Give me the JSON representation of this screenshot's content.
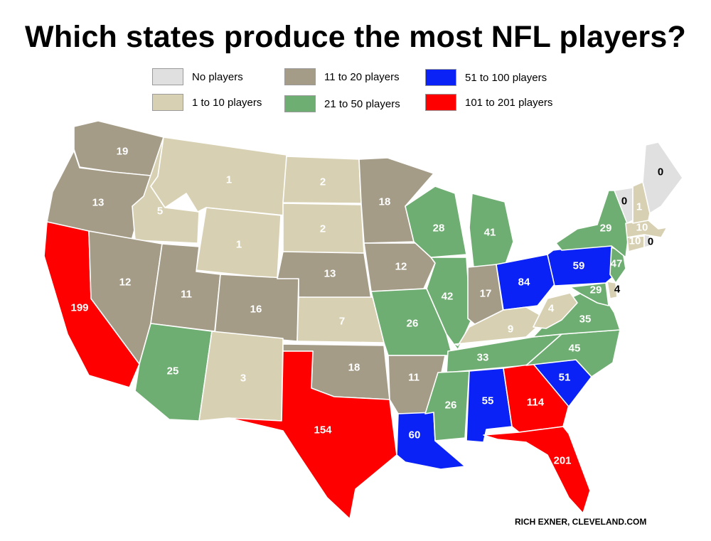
{
  "title": "Which states produce the most NFL players?",
  "credit": "RICH EXNER, CLEVELAND.COM",
  "colors": {
    "none": "#e0e0e0",
    "c1_10": "#d8d0b2",
    "c11_20": "#a59c88",
    "c21_50": "#6fae72",
    "c51_100": "#0a22f5",
    "c101_201": "#ff0000"
  },
  "legend": [
    {
      "label": "No players",
      "color_key": "none"
    },
    {
      "label": "1 to 10 players",
      "color_key": "c1_10"
    },
    {
      "label": "11 to 20 players",
      "color_key": "c11_20"
    },
    {
      "label": "21 to 50 players",
      "color_key": "c21_50"
    },
    {
      "label": "51 to 100 players",
      "color_key": "c51_100"
    },
    {
      "label": "101 to 201 players",
      "color_key": "c101_201"
    }
  ],
  "states": [
    {
      "id": "WA",
      "value": 19
    },
    {
      "id": "OR",
      "value": 13
    },
    {
      "id": "CA",
      "value": 199
    },
    {
      "id": "ID",
      "value": 5
    },
    {
      "id": "NV",
      "value": 12
    },
    {
      "id": "MT",
      "value": 1
    },
    {
      "id": "WY",
      "value": 1
    },
    {
      "id": "UT",
      "value": 11
    },
    {
      "id": "AZ",
      "value": 25
    },
    {
      "id": "CO",
      "value": 16
    },
    {
      "id": "NM",
      "value": 3
    },
    {
      "id": "ND",
      "value": 2
    },
    {
      "id": "SD",
      "value": 2
    },
    {
      "id": "NE",
      "value": 13
    },
    {
      "id": "KS",
      "value": 7
    },
    {
      "id": "OK",
      "value": 18
    },
    {
      "id": "TX",
      "value": 154
    },
    {
      "id": "MN",
      "value": 18
    },
    {
      "id": "IA",
      "value": 12
    },
    {
      "id": "MO",
      "value": 26
    },
    {
      "id": "AR",
      "value": 11
    },
    {
      "id": "LA",
      "value": 60
    },
    {
      "id": "WI",
      "value": 28
    },
    {
      "id": "IL",
      "value": 42
    },
    {
      "id": "MI",
      "value": 41
    },
    {
      "id": "IN",
      "value": 17
    },
    {
      "id": "OH",
      "value": 84
    },
    {
      "id": "KY",
      "value": 9
    },
    {
      "id": "TN",
      "value": 33
    },
    {
      "id": "MS",
      "value": 26
    },
    {
      "id": "AL",
      "value": 55
    },
    {
      "id": "GA",
      "value": 114
    },
    {
      "id": "FL",
      "value": 201
    },
    {
      "id": "SC",
      "value": 51
    },
    {
      "id": "NC",
      "value": 45
    },
    {
      "id": "VA",
      "value": 35
    },
    {
      "id": "WV",
      "value": 4
    },
    {
      "id": "MD",
      "value": 29
    },
    {
      "id": "DE",
      "value": 4
    },
    {
      "id": "PA",
      "value": 59
    },
    {
      "id": "NJ",
      "value": 47
    },
    {
      "id": "NY",
      "value": 29
    },
    {
      "id": "CT",
      "value": 10
    },
    {
      "id": "RI",
      "value": 0
    },
    {
      "id": "MA",
      "value": 10
    },
    {
      "id": "VT",
      "value": 0
    },
    {
      "id": "NH",
      "value": 1
    },
    {
      "id": "ME",
      "value": 0
    }
  ]
}
